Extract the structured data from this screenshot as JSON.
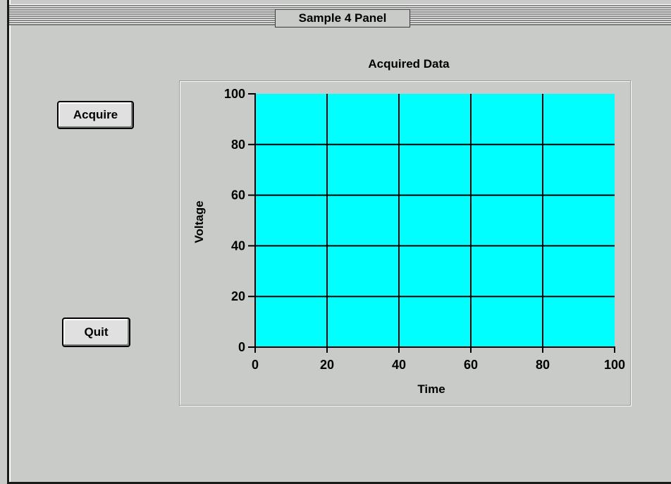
{
  "window": {
    "title": "Sample 4 Panel"
  },
  "buttons": {
    "acquire": "Acquire",
    "quit": "Quit"
  },
  "graph": {
    "plot_bg": "#00ffff",
    "grid_color": "#000000"
  },
  "chart_data": {
    "type": "line",
    "title": "Acquired Data",
    "xlabel": "Time",
    "ylabel": "Voltage",
    "xlim": [
      0,
      100
    ],
    "ylim": [
      0,
      100
    ],
    "x_ticks": [
      "0",
      "20",
      "40",
      "60",
      "80",
      "100"
    ],
    "y_ticks": [
      "0",
      "20",
      "40",
      "60",
      "80",
      "100"
    ],
    "grid": true,
    "series": []
  }
}
